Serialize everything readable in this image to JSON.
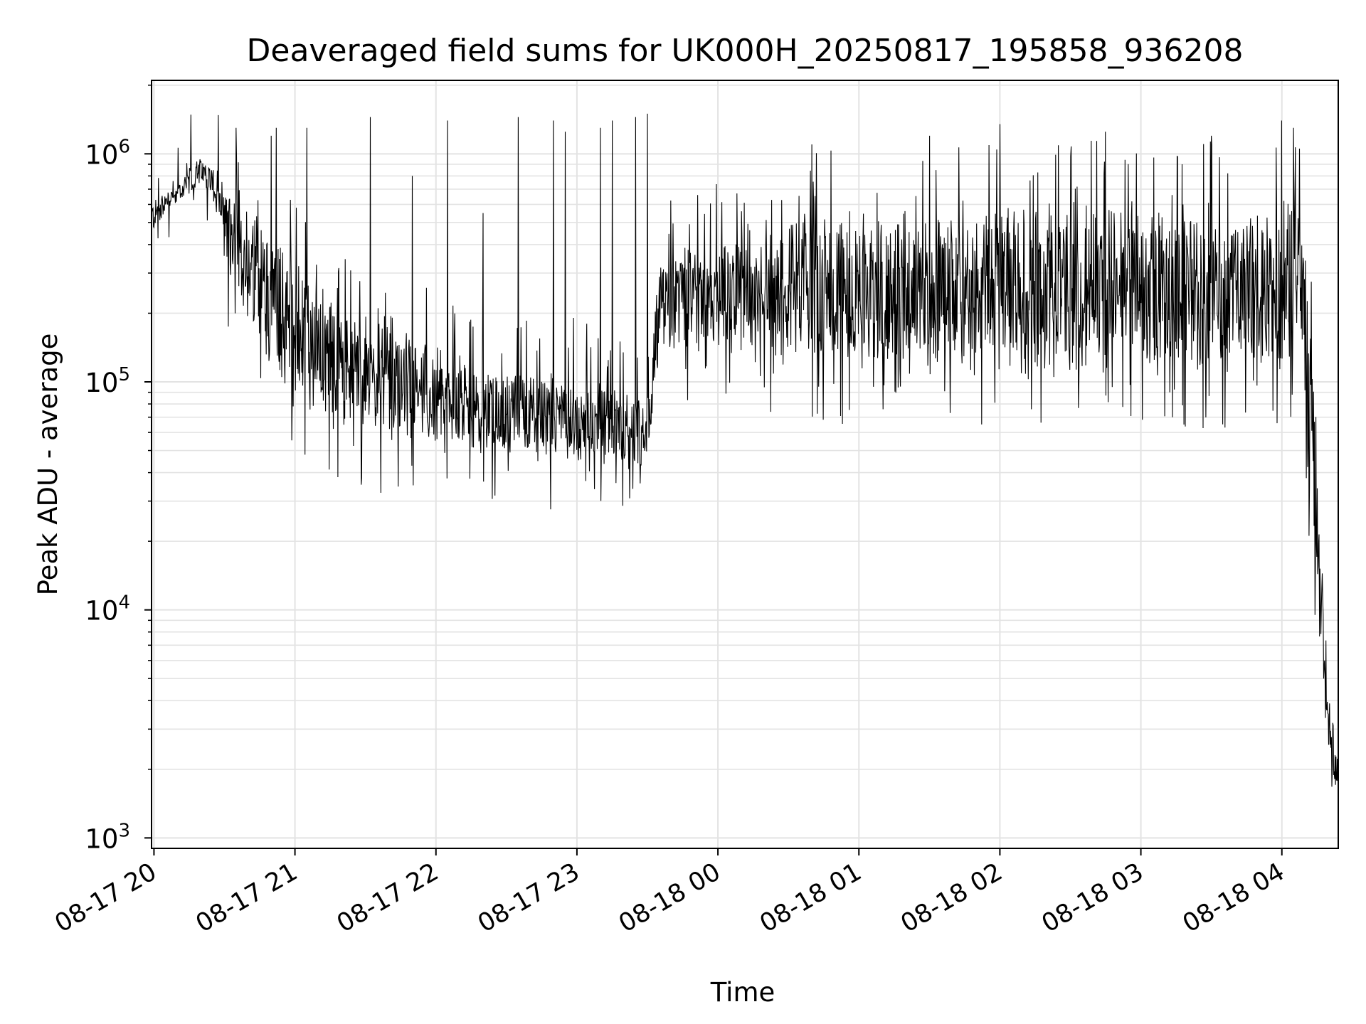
{
  "chart_data": {
    "type": "line",
    "title": "Deaveraged field sums for UK000H_20250817_195858_936208",
    "xlabel": "Time",
    "ylabel": "Peak ADU - average",
    "yscale": "log",
    "ylim": [
      900,
      2100000
    ],
    "xlim": [
      "2025-08-17 19:58:58",
      "2025-08-18 04:24:00"
    ],
    "grid": true,
    "line_color": "#000000",
    "x_ticks": [
      {
        "t": "2025-08-17 20:00",
        "label": "08-17 20"
      },
      {
        "t": "2025-08-17 21:00",
        "label": "08-17 21"
      },
      {
        "t": "2025-08-17 22:00",
        "label": "08-17 22"
      },
      {
        "t": "2025-08-17 23:00",
        "label": "08-17 23"
      },
      {
        "t": "2025-08-18 00:00",
        "label": "08-18 00"
      },
      {
        "t": "2025-08-18 01:00",
        "label": "08-18 01"
      },
      {
        "t": "2025-08-18 02:00",
        "label": "08-18 02"
      },
      {
        "t": "2025-08-18 03:00",
        "label": "08-18 03"
      },
      {
        "t": "2025-08-18 04:00",
        "label": "08-18 04"
      }
    ],
    "y_ticks": [
      {
        "value": 1000,
        "base": "10",
        "exp": "3"
      },
      {
        "value": 10000,
        "base": "10",
        "exp": "4"
      },
      {
        "value": 100000,
        "base": "10",
        "exp": "5"
      },
      {
        "value": 1000000,
        "base": "10",
        "exp": "6"
      }
    ],
    "envelope": {
      "x": [
        "2025-08-17 19:59",
        "2025-08-17 20:05",
        "2025-08-17 20:10",
        "2025-08-17 20:15",
        "2025-08-17 20:20",
        "2025-08-17 20:25",
        "2025-08-17 20:30",
        "2025-08-17 20:40",
        "2025-08-17 20:50",
        "2025-08-17 21:00",
        "2025-08-17 21:15",
        "2025-08-17 21:30",
        "2025-08-17 21:45",
        "2025-08-17 22:00",
        "2025-08-17 22:15",
        "2025-08-17 22:30",
        "2025-08-17 22:45",
        "2025-08-17 23:00",
        "2025-08-17 23:15",
        "2025-08-17 23:30",
        "2025-08-17 23:35",
        "2025-08-17 23:45",
        "2025-08-18 00:00",
        "2025-08-18 00:15",
        "2025-08-18 00:30",
        "2025-08-18 00:45",
        "2025-08-18 01:00",
        "2025-08-18 01:30",
        "2025-08-18 02:00",
        "2025-08-18 02:30",
        "2025-08-18 03:00",
        "2025-08-18 03:30",
        "2025-08-18 03:50",
        "2025-08-18 04:00",
        "2025-08-18 04:04",
        "2025-08-18 04:08",
        "2025-08-18 04:12",
        "2025-08-18 04:15",
        "2025-08-18 04:18",
        "2025-08-18 04:20",
        "2025-08-18 04:24"
      ],
      "low": [
        420000,
        560000,
        600000,
        650000,
        700000,
        650000,
        300000,
        170000,
        110000,
        70000,
        60000,
        52000,
        50000,
        48000,
        46000,
        45000,
        42000,
        42000,
        40000,
        38000,
        120000,
        130000,
        130000,
        120000,
        110000,
        105000,
        100000,
        100000,
        100000,
        100000,
        100000,
        95000,
        90000,
        90000,
        90000,
        80000,
        30000,
        10000,
        3500,
        1700,
        1500
      ],
      "high": [
        650000,
        680000,
        720000,
        900000,
        1000000,
        900000,
        800000,
        600000,
        500000,
        380000,
        250000,
        200000,
        180000,
        150000,
        130000,
        120000,
        115000,
        110000,
        105000,
        95000,
        350000,
        420000,
        450000,
        500000,
        550000,
        600000,
        620000,
        650000,
        650000,
        650000,
        650000,
        650000,
        700000,
        800000,
        900000,
        650000,
        250000,
        40000,
        12000,
        4500,
        2500
      ]
    },
    "spikes": [
      {
        "t": "2025-08-17 20:35",
        "value": 1300000
      },
      {
        "t": "2025-08-17 20:50",
        "value": 1200000
      },
      {
        "t": "2025-08-17 20:52",
        "value": 1300000
      },
      {
        "t": "2025-08-17 21:05",
        "value": 1300000
      },
      {
        "t": "2025-08-17 21:32",
        "value": 1450000
      },
      {
        "t": "2025-08-17 21:50",
        "value": 800000
      },
      {
        "t": "2025-08-17 22:05",
        "value": 1400000
      },
      {
        "t": "2025-08-17 22:20",
        "value": 550000
      },
      {
        "t": "2025-08-17 22:35",
        "value": 1450000
      },
      {
        "t": "2025-08-17 22:50",
        "value": 1400000
      },
      {
        "t": "2025-08-17 22:55",
        "value": 1250000
      },
      {
        "t": "2025-08-17 23:10",
        "value": 1300000
      },
      {
        "t": "2025-08-17 23:15",
        "value": 1400000
      },
      {
        "t": "2025-08-17 23:25",
        "value": 1450000
      },
      {
        "t": "2025-08-17 23:30",
        "value": 1500000
      },
      {
        "t": "2025-08-18 00:40",
        "value": 1100000
      },
      {
        "t": "2025-08-18 01:30",
        "value": 1200000
      },
      {
        "t": "2025-08-18 02:00",
        "value": 1350000
      },
      {
        "t": "2025-08-18 02:45",
        "value": 1250000
      },
      {
        "t": "2025-08-18 03:30",
        "value": 1200000
      },
      {
        "t": "2025-08-18 04:00",
        "value": 1400000
      },
      {
        "t": "2025-08-18 04:05",
        "value": 1300000
      }
    ]
  }
}
